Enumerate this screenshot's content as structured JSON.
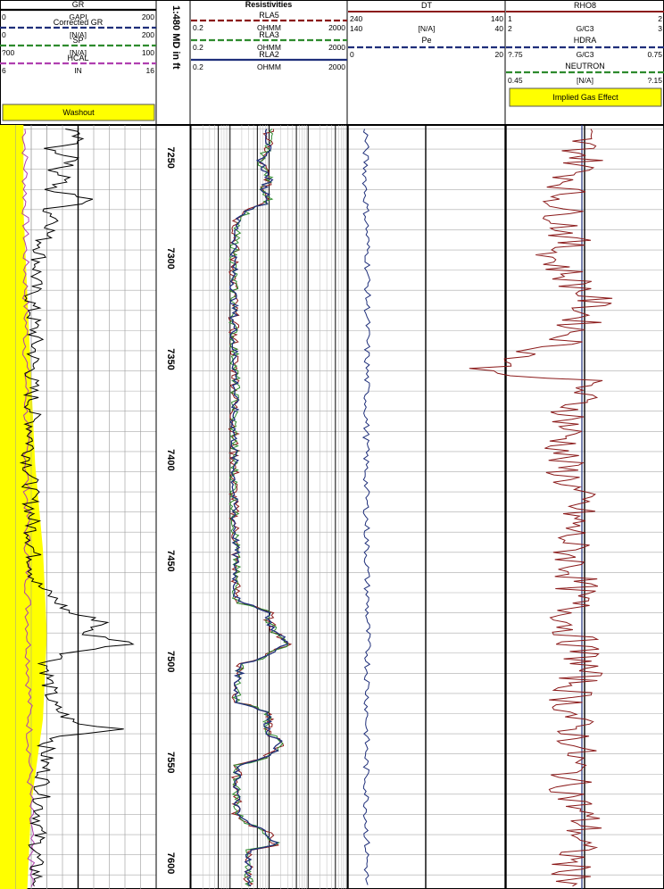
{
  "depth_scale_label": "1:480 MD in ft",
  "depth": {
    "top": 7233,
    "bottom": 7612,
    "labels": [
      7250,
      7300,
      7350,
      7400,
      7450,
      7500,
      7550,
      7600
    ]
  },
  "tracks": {
    "gr": {
      "curves": [
        {
          "name": "GR",
          "unit": "GAPI",
          "min": "0",
          "max": "200",
          "color": "#000000",
          "dash": false
        },
        {
          "name": "Corrected GR",
          "unit": "[N/A]",
          "min": "0",
          "max": "200",
          "color": "#1f2f7a",
          "dash": true
        },
        {
          "name": "SP",
          "unit": "[N/A]",
          "min": "?00",
          "max": "100",
          "color": "#2e8b2e",
          "dash": true
        },
        {
          "name": "HCAL",
          "unit": "IN",
          "min": "6",
          "max": "16",
          "color": "#b040b0",
          "dash": true
        }
      ],
      "fill_label": "Washout",
      "fill_color": "#ffff00"
    },
    "resistivity": {
      "title": "Resistivities",
      "curves": [
        {
          "name": "RLA5",
          "unit": "OHMM",
          "min": "0.2",
          "max": "2000",
          "color": "#8b1a1a",
          "dash": true
        },
        {
          "name": "RLA3",
          "unit": "OHMM",
          "min": "0.2",
          "max": "2000",
          "color": "#2e8b2e",
          "dash": true
        },
        {
          "name": "RLA2",
          "unit": "OHMM",
          "min": "0.2",
          "max": "2000",
          "color": "#1f2f7a",
          "dash": false
        }
      ]
    },
    "dt": {
      "curves": [
        {
          "name": "DT",
          "unit": "[N/A]",
          "min": "240",
          "max": "140",
          "min2": "140",
          "max2": "40",
          "color": "#8b1a1a",
          "dash": false
        },
        {
          "name": "Pe",
          "unit": "",
          "min": "0",
          "max": "20",
          "color": "#1f2f7a",
          "dash": true
        }
      ]
    },
    "density": {
      "curves": [
        {
          "name": "RHO8",
          "unit": "G/C3",
          "min": "1",
          "max": "2",
          "min2": "2",
          "max2": "3",
          "color": "#8b1a1a",
          "dash": false
        },
        {
          "name": "HDRA",
          "unit": "G/C3",
          "min": "?.75",
          "max": "0.75",
          "color": "#1f2f7a",
          "dash": true
        },
        {
          "name": "NEUTRON",
          "unit": "[N/A]",
          "min": "0.45",
          "max": "?.15",
          "color": "#2e8b2e",
          "dash": true
        }
      ],
      "fill_label": "Implied Gas Effect",
      "fill_color": "#ffff00"
    }
  },
  "chart_data": {
    "type": "line",
    "x_axis": "depth (ft)",
    "series": [
      {
        "name": "GR",
        "x": [
          7235,
          7240,
          7245,
          7250,
          7255,
          7260,
          7265,
          7270,
          7275,
          7280,
          7290,
          7300,
          7320,
          7340,
          7360,
          7380,
          7400,
          7420,
          7440,
          7460,
          7475,
          7480,
          7485,
          7490,
          7495,
          7500,
          7520,
          7530,
          7533,
          7536,
          7540,
          7560,
          7580,
          7600,
          7610
        ],
        "y": [
          85,
          110,
          60,
          105,
          70,
          90,
          55,
          125,
          60,
          75,
          55,
          50,
          40,
          45,
          40,
          42,
          38,
          40,
          42,
          45,
          90,
          140,
          100,
          175,
          90,
          60,
          65,
          95,
          165,
          80,
          60,
          55,
          50,
          45,
          48
        ]
      },
      {
        "name": "RLA2",
        "x": [
          7235,
          7245,
          7250,
          7255,
          7260,
          7265,
          7270,
          7275,
          7280,
          7300,
          7320,
          7340,
          7360,
          7380,
          7400,
          7420,
          7440,
          7460,
          7470,
          7475,
          7480,
          7485,
          7490,
          7495,
          7500,
          7510,
          7520,
          7525,
          7530,
          7535,
          7540,
          7550,
          7560,
          7575,
          7580,
          7585,
          7590,
          7592,
          7596,
          7610
        ],
        "y": [
          20,
          18,
          12,
          15,
          20,
          14,
          22,
          6,
          3,
          2.5,
          2.5,
          2.5,
          2.8,
          2.5,
          2.6,
          2.5,
          2.8,
          2.8,
          3,
          20,
          20,
          30,
          60,
          20,
          4,
          3,
          3,
          20,
          18,
          20,
          40,
          3,
          3,
          3,
          6,
          20,
          30,
          6,
          6,
          6
        ]
      },
      {
        "name": "Pe",
        "x": [
          7235,
          7260,
          7300,
          7350,
          7400,
          7450,
          7500,
          7550,
          7600,
          7610
        ],
        "y": [
          2.3,
          2.2,
          2.5,
          2.4,
          2.3,
          2.4,
          2.5,
          2.3,
          2.4,
          2.3
        ]
      },
      {
        "name": "RHO8",
        "x": [
          7235,
          7250,
          7270,
          7290,
          7300,
          7320,
          7340,
          7355,
          7360,
          7380,
          7400,
          7420,
          7440,
          7460,
          7480,
          7500,
          7520,
          7540,
          7560,
          7580,
          7600,
          7610
        ],
        "y": [
          2.45,
          2.5,
          2.35,
          2.4,
          2.3,
          2.55,
          2.4,
          1.85,
          2.5,
          2.4,
          2.35,
          2.45,
          2.4,
          2.45,
          2.4,
          2.5,
          2.4,
          2.45,
          2.4,
          2.5,
          2.4,
          2.45
        ]
      }
    ],
    "yellow_fill_gr_to": [
      30,
      30,
      35,
      40,
      45,
      55,
      60,
      55,
      40,
      35
    ]
  }
}
